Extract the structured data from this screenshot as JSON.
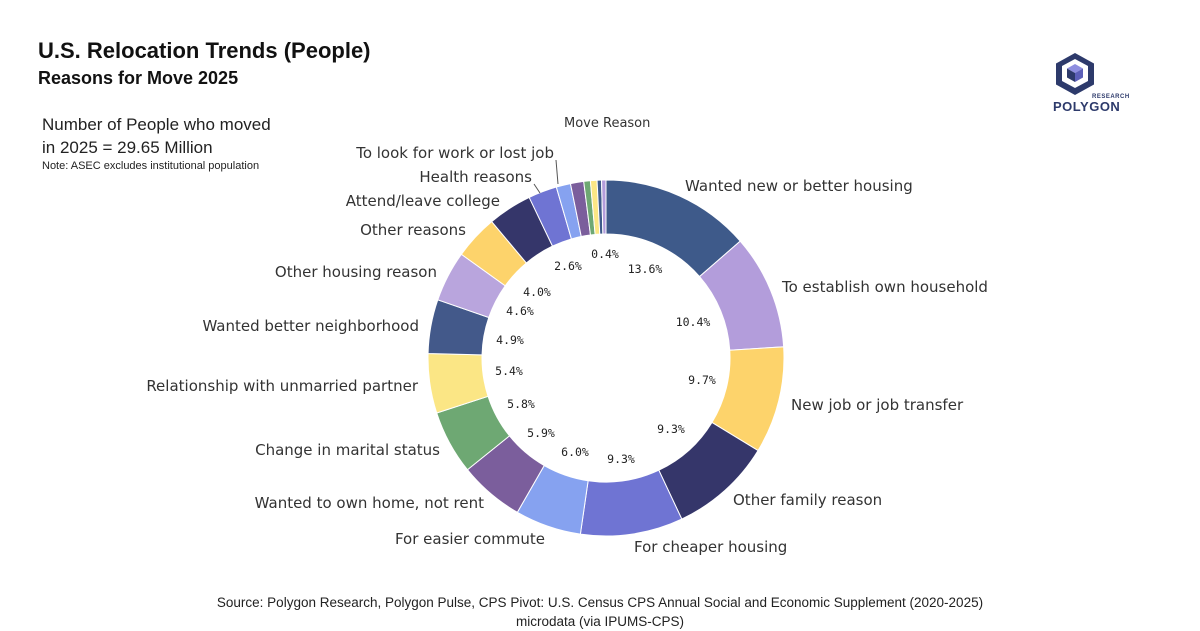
{
  "header": {
    "title": "U.S. Relocation Trends (People)",
    "subtitle": "Reasons for Move 2025"
  },
  "stats": {
    "line1": "Number of People who moved",
    "line2": "in 2025 = 29.65 Million",
    "note": "Note: ASEC excludes institutional population"
  },
  "logo": {
    "small_text": "RESEARCH",
    "word": "POLYGON",
    "colors": {
      "dark": "#2d3a6b",
      "mid": "#5c5fb8",
      "light": "#8e8ee0"
    }
  },
  "source": {
    "line1": "Source: Polygon Research, Polygon Pulse, CPS Pivot: U.S. Census CPS Annual Social and Economic Supplement (2020-2025)",
    "line2": "microdata (via IPUMS-CPS)"
  },
  "chart_data": {
    "type": "pie",
    "variant": "donut",
    "legend_title": "Move Reason",
    "slices": [
      {
        "label": "Wanted new or better housing",
        "value": 13.6,
        "pct_label": "13.6%",
        "color": "#3e5a8a"
      },
      {
        "label": "To establish own household",
        "value": 10.4,
        "pct_label": "10.4%",
        "color": "#b39ddb"
      },
      {
        "label": "New job or job transfer",
        "value": 9.7,
        "pct_label": "9.7%",
        "color": "#fdd36b"
      },
      {
        "label": "Other family reason",
        "value": 9.3,
        "pct_label": "9.3%",
        "color": "#35366a"
      },
      {
        "label": "For cheaper housing",
        "value": 9.3,
        "pct_label": "9.3%",
        "color": "#6f74d3"
      },
      {
        "label": "For easier commute",
        "value": 6.0,
        "pct_label": "6.0%",
        "color": "#86a2f0"
      },
      {
        "label": "Wanted to own home, not rent",
        "value": 5.9,
        "pct_label": "5.9%",
        "color": "#7b5e9c"
      },
      {
        "label": "Change in marital status",
        "value": 5.8,
        "pct_label": "5.8%",
        "color": "#6ea873"
      },
      {
        "label": "Relationship with unmarried partner",
        "value": 5.4,
        "pct_label": "5.4%",
        "color": "#fbe685"
      },
      {
        "label": "Wanted better neighborhood",
        "value": 4.9,
        "pct_label": "4.9%",
        "color": "#43598a"
      },
      {
        "label": "Other housing reason",
        "value": 4.6,
        "pct_label": "4.6%",
        "color": "#b9a5dd"
      },
      {
        "label": "Other reasons",
        "value": 4.0,
        "pct_label": "4.0%",
        "color": "#fdd36b"
      },
      {
        "label": "Attend/leave college",
        "value": 4.0,
        "pct_label": "",
        "color": "#35366a"
      },
      {
        "label": "Health reasons",
        "value": 2.6,
        "pct_label": "2.6%",
        "color": "#6f74d3"
      },
      {
        "label": "To look for work or lost job",
        "value": 1.3,
        "pct_label": "",
        "color": "#86a2f0"
      },
      {
        "label": "",
        "value": 1.2,
        "pct_label": "",
        "color": "#7b5e9c"
      },
      {
        "label": "",
        "value": 0.6,
        "pct_label": "",
        "color": "#6ea873"
      },
      {
        "label": "",
        "value": 0.6,
        "pct_label": "",
        "color": "#fbe685"
      },
      {
        "label": "",
        "value": 0.4,
        "pct_label": "0.4%",
        "color": "#3e5a8a"
      },
      {
        "label": "",
        "value": 0.4,
        "pct_label": "",
        "color": "#b39ddb"
      }
    ]
  }
}
